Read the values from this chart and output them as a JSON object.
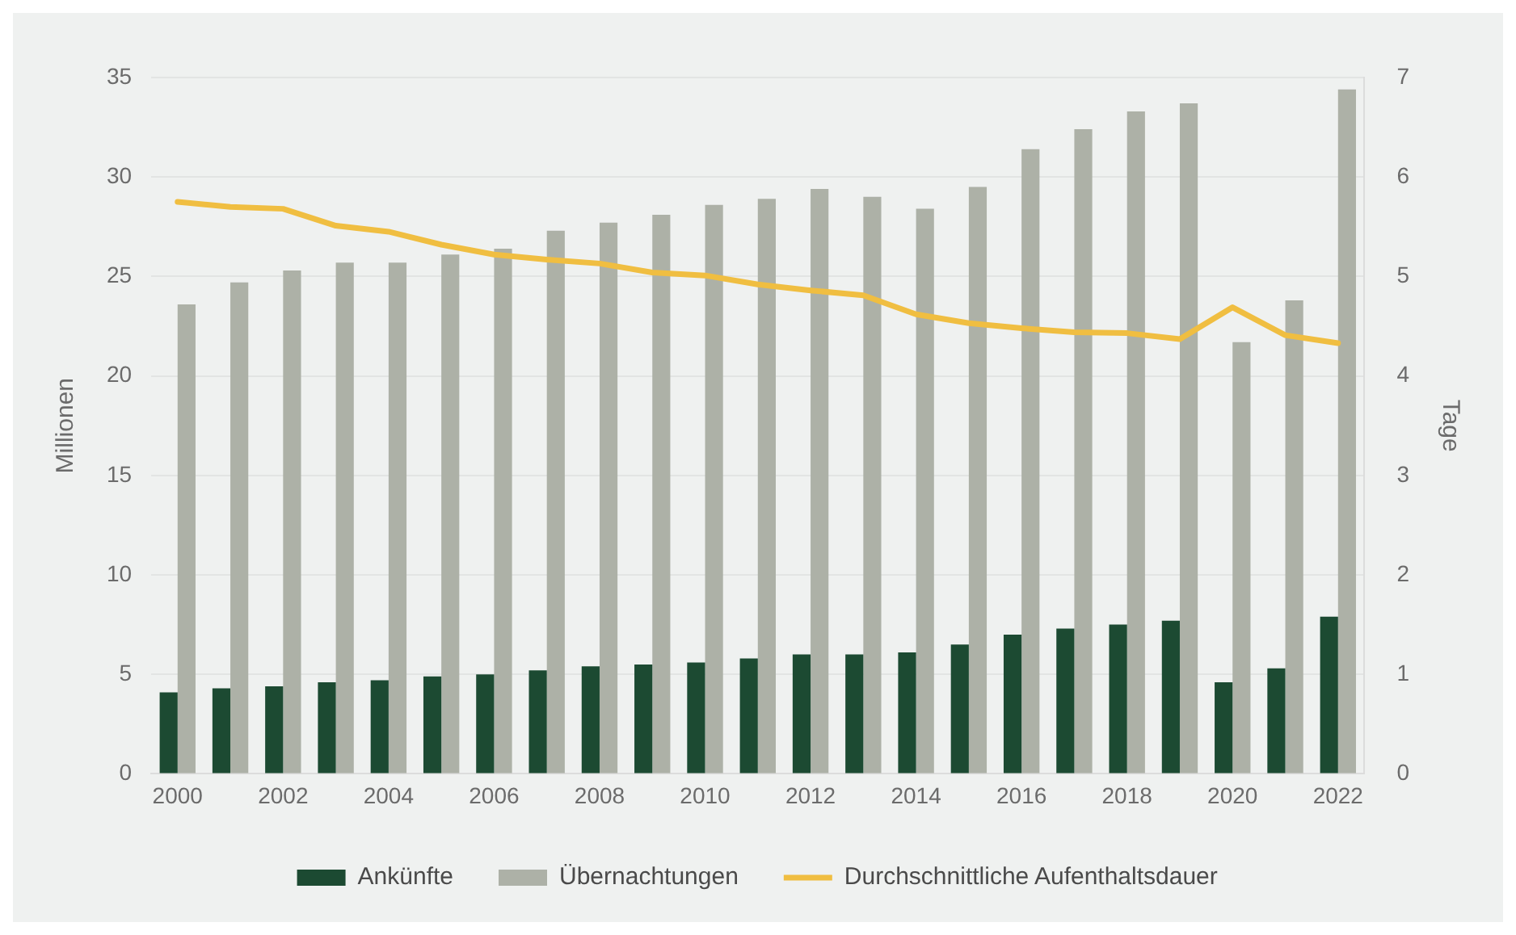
{
  "chart_data": {
    "type": "bar",
    "ylabel": "Millionen",
    "y2label": "Tage",
    "categories": [
      "2000",
      null,
      "2002",
      null,
      "2004",
      null,
      "2006",
      null,
      "2008",
      null,
      "2010",
      null,
      "2012",
      null,
      "2014",
      null,
      "2016",
      null,
      "2018",
      null,
      "2020",
      null,
      "2022"
    ],
    "series": [
      {
        "name": "Ankünfte",
        "color": "#1c4a32",
        "values": [
          4.1,
          4.3,
          4.4,
          4.6,
          4.7,
          4.9,
          5.0,
          5.2,
          5.4,
          5.5,
          5.6,
          5.8,
          6.0,
          6.0,
          6.1,
          6.5,
          7.0,
          7.3,
          7.5,
          7.7,
          4.6,
          5.3,
          7.9
        ]
      },
      {
        "name": "Übernachtungen",
        "color": "#adb1a7",
        "values": [
          23.6,
          24.7,
          25.3,
          25.7,
          25.7,
          26.1,
          26.4,
          27.3,
          27.7,
          28.1,
          28.6,
          28.9,
          29.4,
          29.0,
          28.4,
          29.5,
          31.4,
          32.4,
          33.3,
          33.7,
          21.7,
          23.8,
          34.4
        ]
      },
      {
        "name": "Durchschnittliche Aufenthaltsdauer",
        "type": "line",
        "axis": "y2",
        "color": "#f0be41",
        "values": [
          5.75,
          5.7,
          5.68,
          5.51,
          5.45,
          5.32,
          5.22,
          5.17,
          5.13,
          5.04,
          5.01,
          4.92,
          4.86,
          4.81,
          4.62,
          4.53,
          4.48,
          4.44,
          4.43,
          4.37,
          4.69,
          4.41,
          4.33
        ]
      }
    ],
    "ylim": [
      0,
      35
    ],
    "yticks": [
      0,
      5,
      10,
      15,
      20,
      25,
      30,
      35
    ],
    "y2lim": [
      0,
      7
    ],
    "y2ticks": [
      0,
      1,
      2,
      3,
      4,
      5,
      6,
      7
    ],
    "grid": "y",
    "legend": "bottom",
    "marker": "none",
    "line_style": "solid"
  }
}
